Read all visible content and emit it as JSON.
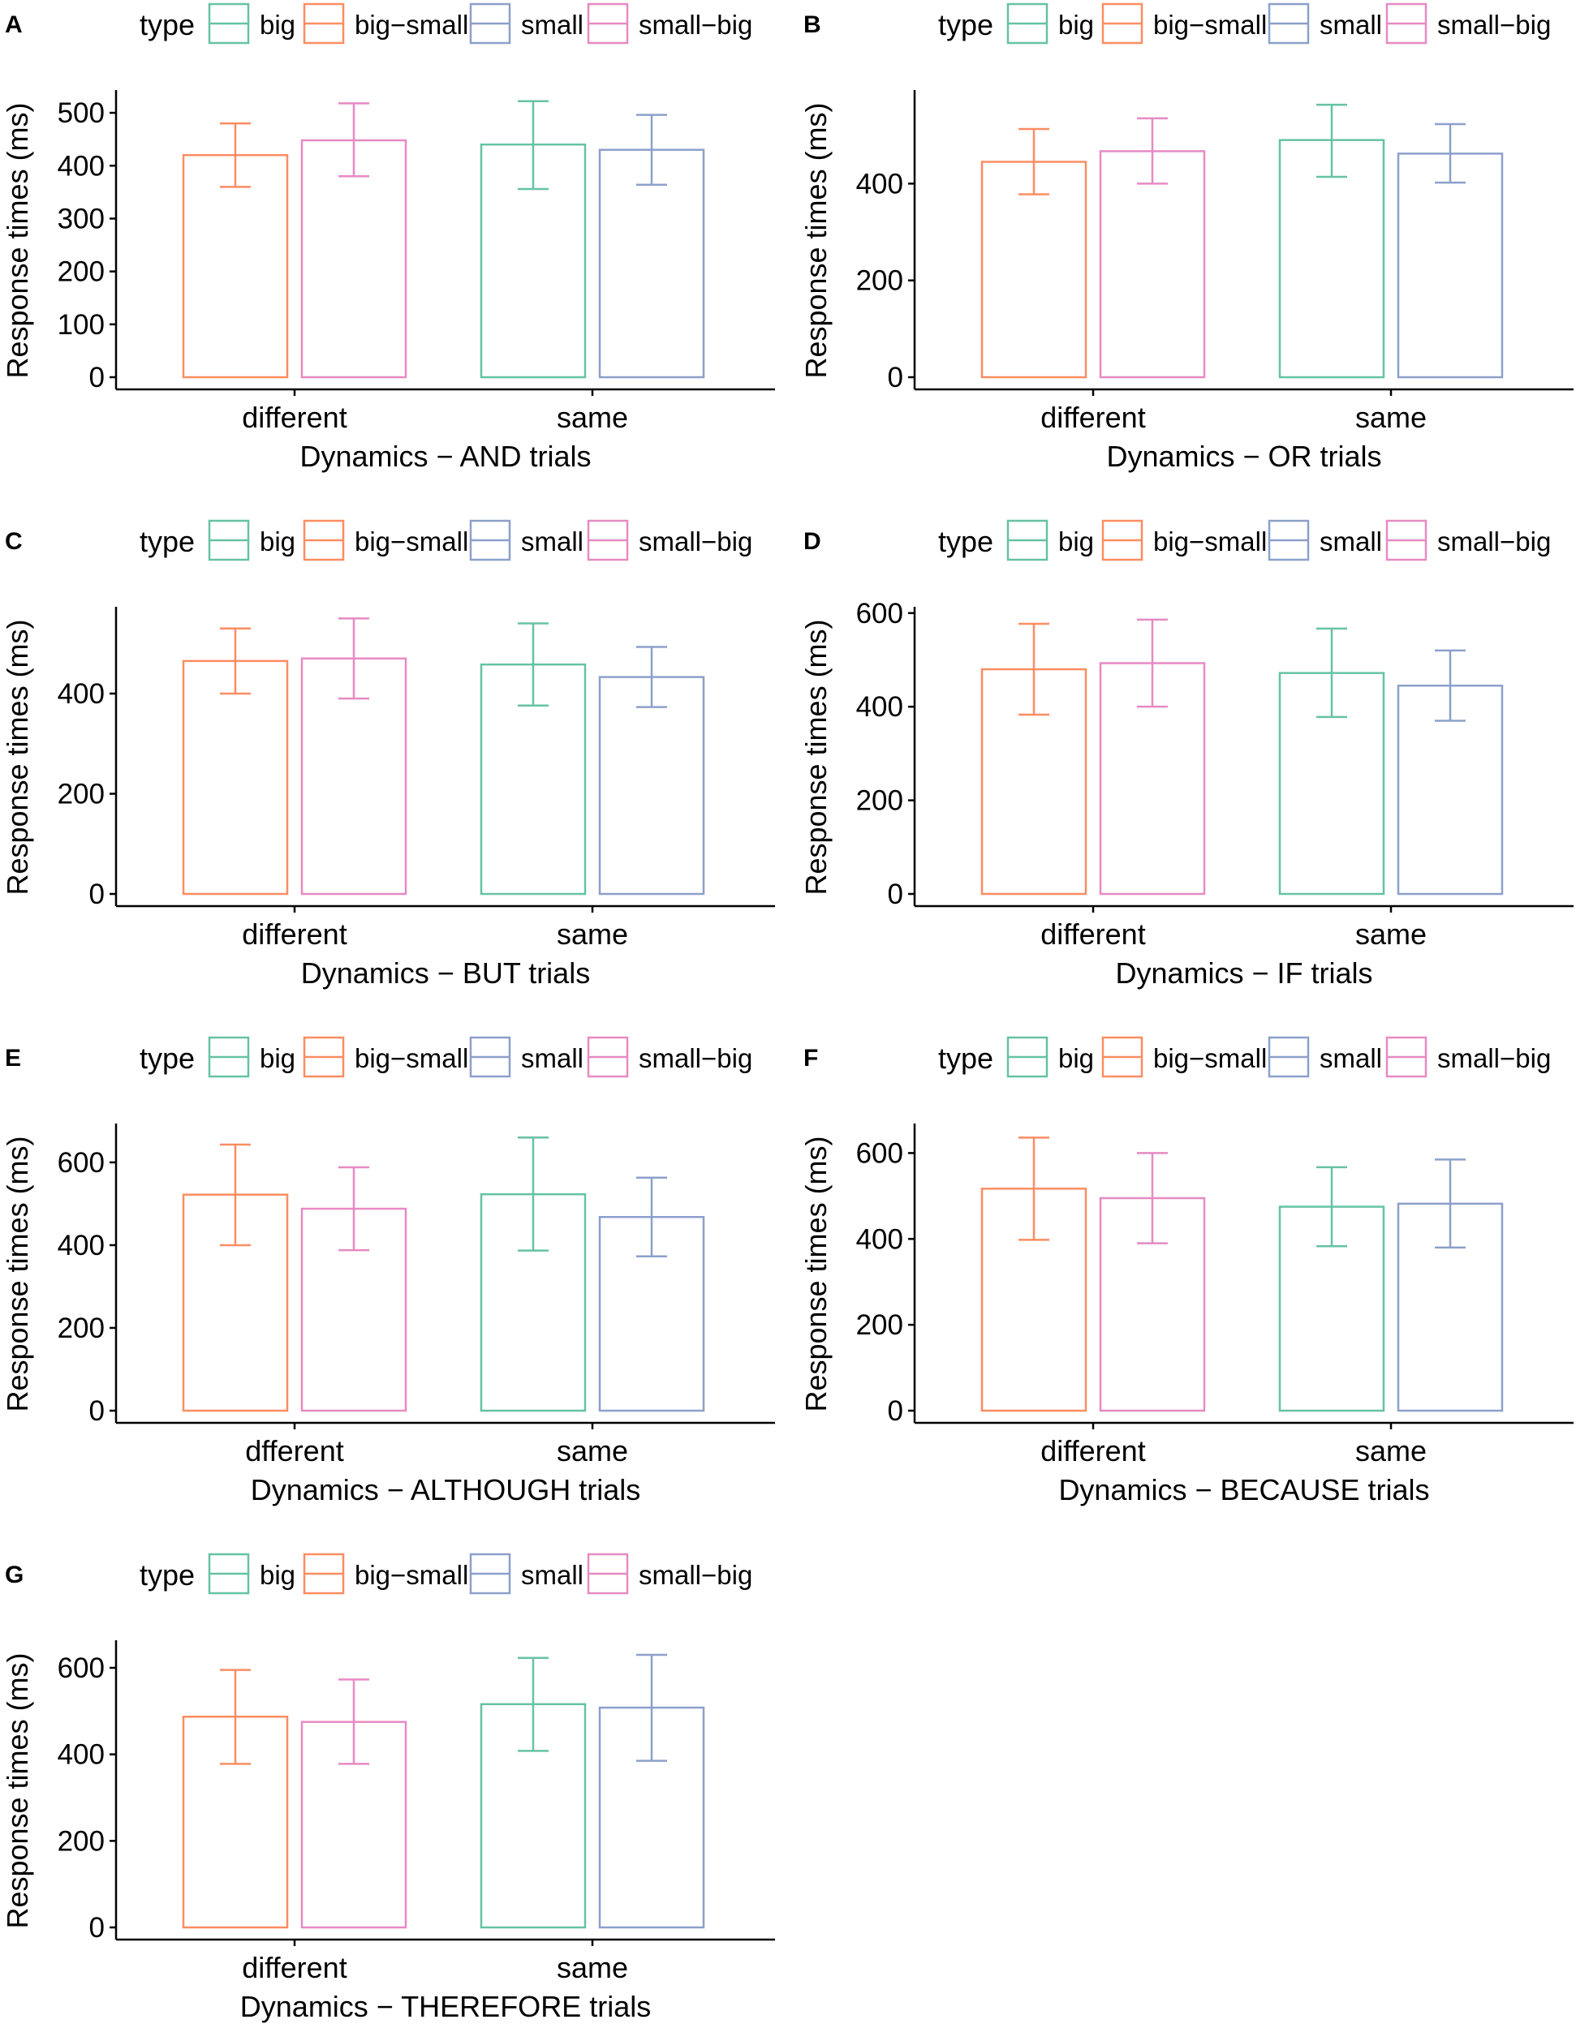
{
  "figure": {
    "legend_title": "type",
    "legend": [
      {
        "key": "big",
        "label": "big",
        "color": "#66c2a5"
      },
      {
        "key": "big-small",
        "label": "big−small",
        "color": "#fc8d62"
      },
      {
        "key": "small",
        "label": "small",
        "color": "#8da0cb"
      },
      {
        "key": "small-big",
        "label": "small−big",
        "color": "#e78ac3"
      }
    ]
  },
  "chart_data": [
    {
      "panel": "A",
      "type": "bar",
      "title": "",
      "xlabel": "Dynamics − AND trials",
      "ylabel": "Response times (ms)",
      "ylim": [
        0,
        540
      ],
      "yticks": [
        0,
        100,
        200,
        300,
        400,
        500
      ],
      "categories": [
        "different",
        "same"
      ],
      "bars": [
        {
          "category": "different",
          "type": "big-small",
          "value": 420,
          "err_low": 360,
          "err_high": 480
        },
        {
          "category": "different",
          "type": "small-big",
          "value": 448,
          "err_low": 380,
          "err_high": 518
        },
        {
          "category": "same",
          "type": "big",
          "value": 440,
          "err_low": 356,
          "err_high": 522
        },
        {
          "category": "same",
          "type": "small",
          "value": 430,
          "err_low": 364,
          "err_high": 496
        }
      ]
    },
    {
      "panel": "B",
      "type": "bar",
      "title": "",
      "xlabel": "Dynamics − OR trials",
      "ylabel": "Response times (ms)",
      "ylim": [
        0,
        590
      ],
      "yticks": [
        0,
        200,
        400
      ],
      "categories": [
        "different",
        "same"
      ],
      "bars": [
        {
          "category": "different",
          "type": "big-small",
          "value": 445,
          "err_low": 378,
          "err_high": 513
        },
        {
          "category": "different",
          "type": "small-big",
          "value": 467,
          "err_low": 400,
          "err_high": 535
        },
        {
          "category": "same",
          "type": "big",
          "value": 490,
          "err_low": 414,
          "err_high": 563
        },
        {
          "category": "same",
          "type": "small",
          "value": 462,
          "err_low": 402,
          "err_high": 523
        }
      ]
    },
    {
      "panel": "C",
      "type": "bar",
      "title": "",
      "xlabel": "Dynamics − BUT trials",
      "ylabel": "Response times (ms)",
      "ylim": [
        0,
        570
      ],
      "yticks": [
        0,
        200,
        400
      ],
      "categories": [
        "different",
        "same"
      ],
      "bars": [
        {
          "category": "different",
          "type": "big-small",
          "value": 465,
          "err_low": 400,
          "err_high": 530
        },
        {
          "category": "different",
          "type": "small-big",
          "value": 470,
          "err_low": 390,
          "err_high": 550
        },
        {
          "category": "same",
          "type": "big",
          "value": 458,
          "err_low": 376,
          "err_high": 540
        },
        {
          "category": "same",
          "type": "small",
          "value": 433,
          "err_low": 373,
          "err_high": 493
        }
      ]
    },
    {
      "panel": "D",
      "type": "bar",
      "title": "",
      "xlabel": "Dynamics − IF trials",
      "ylabel": "Response times (ms)",
      "ylim": [
        0,
        610
      ],
      "yticks": [
        0,
        200,
        400,
        600
      ],
      "categories": [
        "different",
        "same"
      ],
      "bars": [
        {
          "category": "different",
          "type": "big-small",
          "value": 480,
          "err_low": 383,
          "err_high": 577
        },
        {
          "category": "different",
          "type": "small-big",
          "value": 493,
          "err_low": 400,
          "err_high": 586
        },
        {
          "category": "same",
          "type": "big",
          "value": 472,
          "err_low": 378,
          "err_high": 567
        },
        {
          "category": "same",
          "type": "small",
          "value": 445,
          "err_low": 370,
          "err_high": 520
        }
      ]
    },
    {
      "panel": "E",
      "type": "bar",
      "title": "",
      "xlabel": "Dynamics − ALTHOUGH trials",
      "ylabel": "Response times (ms)",
      "ylim": [
        0,
        690
      ],
      "yticks": [
        0,
        200,
        400,
        600
      ],
      "categories": [
        "dfferent",
        "same"
      ],
      "bars": [
        {
          "category": "dfferent",
          "type": "big-small",
          "value": 522,
          "err_low": 400,
          "err_high": 643
        },
        {
          "category": "dfferent",
          "type": "small-big",
          "value": 488,
          "err_low": 388,
          "err_high": 588
        },
        {
          "category": "same",
          "type": "big",
          "value": 523,
          "err_low": 387,
          "err_high": 660
        },
        {
          "category": "same",
          "type": "small",
          "value": 468,
          "err_low": 373,
          "err_high": 563
        }
      ]
    },
    {
      "panel": "F",
      "type": "bar",
      "title": "",
      "xlabel": "Dynamics − BECAUSE trials",
      "ylabel": "Response times (ms)",
      "ylim": [
        0,
        665
      ],
      "yticks": [
        0,
        200,
        400,
        600
      ],
      "categories": [
        "different",
        "same"
      ],
      "bars": [
        {
          "category": "different",
          "type": "big-small",
          "value": 517,
          "err_low": 398,
          "err_high": 636
        },
        {
          "category": "different",
          "type": "small-big",
          "value": 495,
          "err_low": 390,
          "err_high": 600
        },
        {
          "category": "same",
          "type": "big",
          "value": 475,
          "err_low": 383,
          "err_high": 567
        },
        {
          "category": "same",
          "type": "small",
          "value": 482,
          "err_low": 380,
          "err_high": 585
        }
      ]
    },
    {
      "panel": "G",
      "type": "bar",
      "title": "",
      "xlabel": "Dynamics − THEREFORE trials",
      "ylabel": "Response times (ms)",
      "ylim": [
        0,
        660
      ],
      "yticks": [
        0,
        200,
        400,
        600
      ],
      "categories": [
        "different",
        "same"
      ],
      "bars": [
        {
          "category": "different",
          "type": "big-small",
          "value": 487,
          "err_low": 378,
          "err_high": 595
        },
        {
          "category": "different",
          "type": "small-big",
          "value": 475,
          "err_low": 378,
          "err_high": 573
        },
        {
          "category": "same",
          "type": "big",
          "value": 516,
          "err_low": 408,
          "err_high": 623
        },
        {
          "category": "same",
          "type": "small",
          "value": 508,
          "err_low": 385,
          "err_high": 630
        }
      ]
    }
  ]
}
